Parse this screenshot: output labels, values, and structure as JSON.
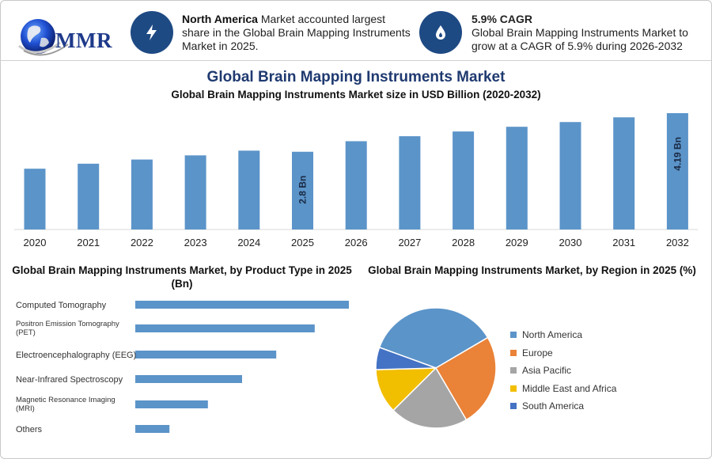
{
  "header": {
    "logo_text": "MMR",
    "highlight1": {
      "bold": "North America",
      "text": " Market accounted largest share in the Global Brain Mapping Instruments Market in 2025.",
      "icon": "lightning-icon"
    },
    "highlight2": {
      "title": "5.9% CAGR",
      "text": "Global Brain Mapping Instruments Market to grow at a CAGR of 5.9% during 2026-2032",
      "icon": "flame-drop-icon"
    }
  },
  "colors": {
    "bar": "#5b94c9",
    "accent_dark": "#1e4a84",
    "title_blue": "#1f3a70"
  },
  "titles": {
    "main": "Global Brain Mapping Instruments Market",
    "bar_sub": "Global Brain Mapping Instruments Market size in USD Billion (2020-2032)",
    "hbar": "Global Brain Mapping Instruments Market, by Product Type in 2025 (Bn)",
    "pie": "Global Brain Mapping Instruments Market, by Region in 2025 (%)"
  },
  "chart_data": [
    {
      "type": "bar",
      "title": "Global Brain Mapping Instruments Market size in USD Billion (2020-2032)",
      "categories": [
        "2020",
        "2021",
        "2022",
        "2023",
        "2024",
        "2025",
        "2026",
        "2027",
        "2028",
        "2029",
        "2030",
        "2031",
        "2032"
      ],
      "values": [
        2.19,
        2.37,
        2.52,
        2.67,
        2.84,
        2.8,
        3.18,
        3.36,
        3.53,
        3.7,
        3.87,
        4.04,
        4.19
      ],
      "data_labels": [
        {
          "category": "2025",
          "text": "2.8 Bn"
        },
        {
          "category": "2032",
          "text": "4.19 Bn"
        }
      ],
      "color": "#5b94c9"
    },
    {
      "type": "bar",
      "orientation": "horizontal",
      "title": "Global Brain Mapping Instruments Market, by Product Type in 2025 (Bn)",
      "categories": [
        "Computed Tomography",
        "Positron Emission Tomography (PET)",
        "Electroencephalography (EEG)",
        "Near-Infrared Spectroscopy",
        "Magnetic Resonance Imaging (MRI)",
        "Others"
      ],
      "values": [
        1.0,
        0.84,
        0.66,
        0.5,
        0.34,
        0.16
      ],
      "color": "#5b94c9"
    },
    {
      "type": "pie",
      "title": "Global Brain Mapping Instruments Market, by Region in 2025 (%)",
      "legend_position": "right",
      "slices": [
        {
          "name": "North America",
          "value": 36,
          "color": "#5b94c9"
        },
        {
          "name": "Europe",
          "value": 25,
          "color": "#ea8237"
        },
        {
          "name": "Asia Pacific",
          "value": 21,
          "color": "#a5a5a5"
        },
        {
          "name": "Middle East and Africa",
          "value": 12,
          "color": "#f2be00"
        },
        {
          "name": "South America",
          "value": 6,
          "color": "#4472c4"
        }
      ]
    }
  ]
}
